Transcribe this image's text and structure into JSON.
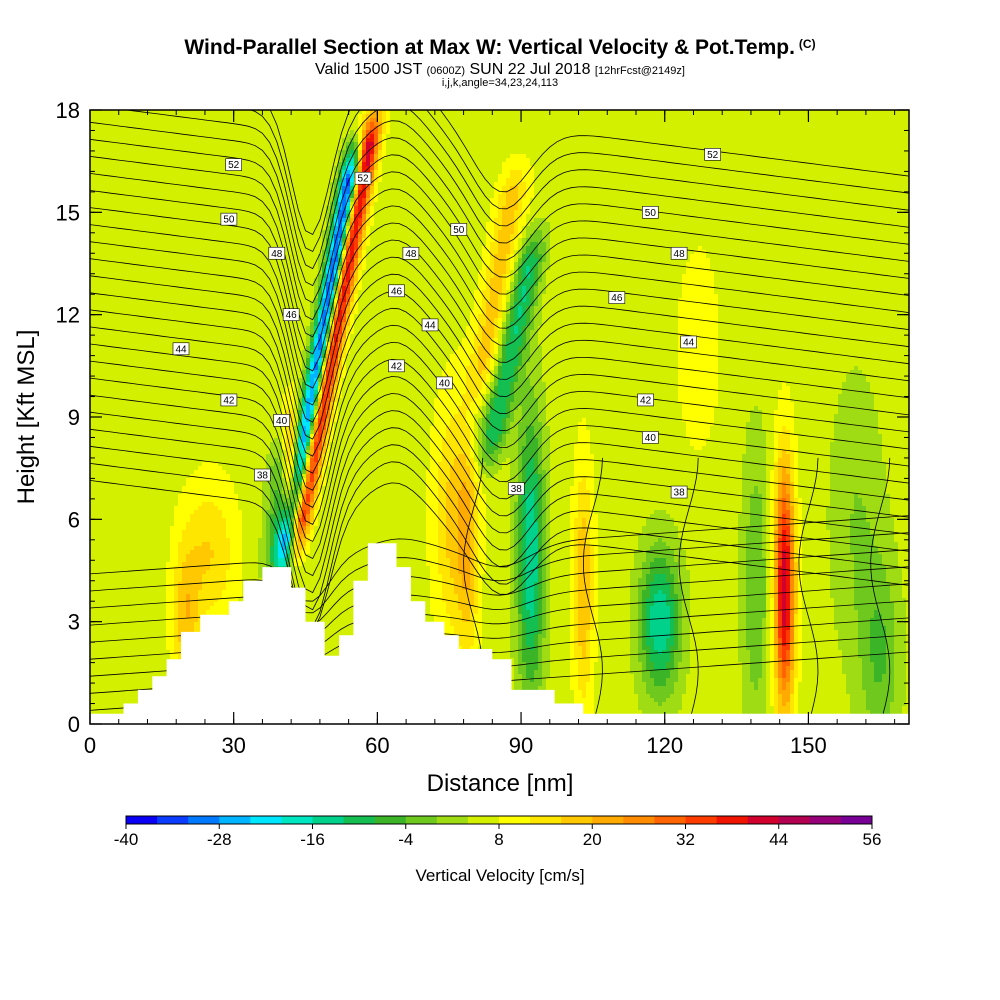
{
  "header": {
    "title": "Wind-Parallel Section at Max W: Vertical Velocity & Pot.Temp.",
    "title_mark": "(C)",
    "subtitle_main": "Valid 1500 JST",
    "subtitle_utc": "(0600Z)",
    "subtitle_date": "SUN 22 Jul 2018",
    "subtitle_fcst": "[12hrFcst@2149z]",
    "indices": "i,j,k,angle=34,23,24,113"
  },
  "chart_data": {
    "type": "heatmap",
    "title": "Wind-Parallel Section at Max W: Vertical Velocity & Pot.Temp.",
    "xlabel": "Distance [nm]",
    "ylabel": "Height [Kft MSL]",
    "xlim": [
      0,
      171
    ],
    "ylim": [
      0,
      18
    ],
    "x_ticks": [
      0,
      30,
      60,
      90,
      120,
      150
    ],
    "x_tick_labels": [
      "0",
      "30",
      "60",
      "90",
      "120",
      "150"
    ],
    "y_ticks": [
      0,
      3,
      6,
      9,
      12,
      15,
      18
    ],
    "y_tick_labels": [
      "0",
      "3",
      "6",
      "9",
      "12",
      "15",
      "18"
    ],
    "colorbar": {
      "title": "Vertical Velocity [cm/s]",
      "min": -40,
      "max": 56,
      "step": 4,
      "tick_labels": [
        "-40",
        "-28",
        "-16",
        "-4",
        "8",
        "20",
        "32",
        "44",
        "56"
      ],
      "colors": [
        "#0a00f5",
        "#0a3cff",
        "#0078ff",
        "#00b4ff",
        "#00e6ff",
        "#00e6c0",
        "#00d28c",
        "#14be50",
        "#3cb428",
        "#6ec81e",
        "#a0dc14",
        "#d2f000",
        "#ffff00",
        "#ffe600",
        "#ffc800",
        "#ffaa00",
        "#ff8c00",
        "#ff6400",
        "#ff3c00",
        "#f01400",
        "#d2002d",
        "#b40050",
        "#960078",
        "#780096"
      ]
    },
    "contour_labels": [
      {
        "value": "52",
        "x": 30,
        "y": 16.4
      },
      {
        "value": "52",
        "x": 57,
        "y": 16.0
      },
      {
        "value": "52",
        "x": 130,
        "y": 16.7
      },
      {
        "value": "50",
        "x": 29,
        "y": 14.8
      },
      {
        "value": "50",
        "x": 77,
        "y": 14.5
      },
      {
        "value": "50",
        "x": 117,
        "y": 15.0
      },
      {
        "value": "48",
        "x": 39,
        "y": 13.8
      },
      {
        "value": "48",
        "x": 67,
        "y": 13.8
      },
      {
        "value": "48",
        "x": 123,
        "y": 13.8
      },
      {
        "value": "46",
        "x": 42,
        "y": 12.0
      },
      {
        "value": "46",
        "x": 64,
        "y": 12.7
      },
      {
        "value": "46",
        "x": 110,
        "y": 12.5
      },
      {
        "value": "44",
        "x": 19,
        "y": 11.0
      },
      {
        "value": "44",
        "x": 71,
        "y": 11.7
      },
      {
        "value": "44",
        "x": 125,
        "y": 11.2
      },
      {
        "value": "42",
        "x": 29,
        "y": 9.5
      },
      {
        "value": "42",
        "x": 64,
        "y": 10.5
      },
      {
        "value": "42",
        "x": 116,
        "y": 9.5
      },
      {
        "value": "40",
        "x": 40,
        "y": 8.9
      },
      {
        "value": "40",
        "x": 74,
        "y": 10.0
      },
      {
        "value": "40",
        "x": 117,
        "y": 8.4
      },
      {
        "value": "38",
        "x": 36,
        "y": 7.3
      },
      {
        "value": "38",
        "x": 89,
        "y": 6.9
      },
      {
        "value": "38",
        "x": 123,
        "y": 6.8
      }
    ],
    "terrain": [
      [
        0,
        0.3
      ],
      [
        7,
        0.3
      ],
      [
        7,
        0.6
      ],
      [
        10,
        0.6
      ],
      [
        10,
        1.0
      ],
      [
        13,
        1.0
      ],
      [
        13,
        1.4
      ],
      [
        16,
        1.4
      ],
      [
        16,
        1.9
      ],
      [
        19,
        1.9
      ],
      [
        19,
        2.7
      ],
      [
        23,
        2.7
      ],
      [
        23,
        3.2
      ],
      [
        29,
        3.2
      ],
      [
        29,
        3.6
      ],
      [
        32,
        3.6
      ],
      [
        32,
        4.2
      ],
      [
        36,
        4.2
      ],
      [
        36,
        4.6
      ],
      [
        42,
        4.6
      ],
      [
        42,
        4.0
      ],
      [
        45,
        4.0
      ],
      [
        45,
        3.0
      ],
      [
        49,
        3.0
      ],
      [
        49,
        2.0
      ],
      [
        52,
        2.0
      ],
      [
        52,
        2.6
      ],
      [
        55,
        2.6
      ],
      [
        55,
        4.2
      ],
      [
        58,
        4.2
      ],
      [
        58,
        5.3
      ],
      [
        64,
        5.3
      ],
      [
        64,
        4.6
      ],
      [
        67,
        4.6
      ],
      [
        67,
        3.6
      ],
      [
        70,
        3.6
      ],
      [
        70,
        3.0
      ],
      [
        74,
        3.0
      ],
      [
        74,
        2.6
      ],
      [
        77,
        2.6
      ],
      [
        77,
        2.2
      ],
      [
        84,
        2.2
      ],
      [
        84,
        1.9
      ],
      [
        88,
        1.9
      ],
      [
        88,
        1.0
      ],
      [
        97,
        1.0
      ],
      [
        97,
        0.6
      ],
      [
        103,
        0.6
      ],
      [
        103,
        0.3
      ],
      [
        171,
        0.3
      ]
    ]
  }
}
